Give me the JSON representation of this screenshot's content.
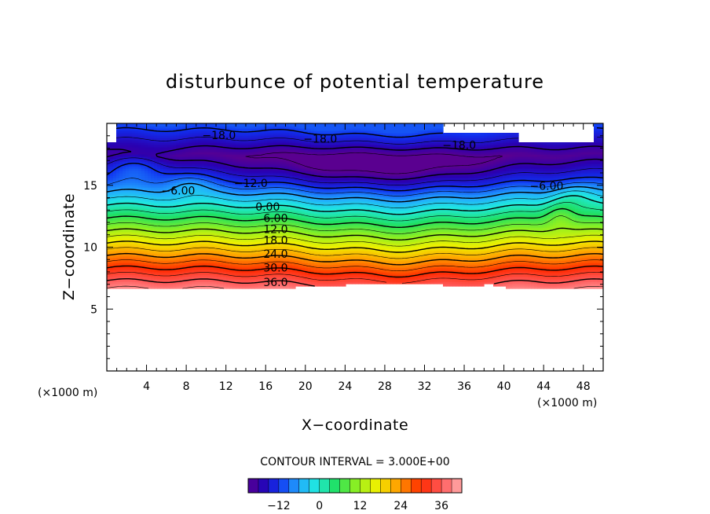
{
  "chart_data": {
    "type": "heatmap",
    "title": "disturbunce of potential temperature",
    "xlabel": "X−coordinate",
    "ylabel": "Z−coordinate",
    "x_unit_left": "(×1000 m)",
    "x_unit_right": "(×1000 m)",
    "xlim": [
      0,
      50
    ],
    "ylim": [
      0,
      20
    ],
    "x_ticks": [
      4,
      8,
      12,
      16,
      20,
      24,
      28,
      32,
      36,
      40,
      44,
      48
    ],
    "x_tick_labels": [
      "4",
      "8",
      "12",
      "16",
      "20",
      "24",
      "28",
      "32",
      "36",
      "40",
      "44",
      "48"
    ],
    "y_ticks": [
      5,
      10,
      15
    ],
    "y_tick_labels": [
      "5",
      "10",
      "15"
    ],
    "contour_interval_text": "CONTOUR INTERVAL = 3.000E+00",
    "contour_interval": 3,
    "level_range": [
      -21,
      42
    ],
    "undefined_regions": [
      "z below about 6.5 (×1000 m)",
      "top-left corner near x=0",
      "top-right near x=42-49"
    ],
    "contour_labels": [
      {
        "text": "−18.0",
        "x": 11.3,
        "z": 19.0
      },
      {
        "text": "−18.0",
        "x": 21.5,
        "z": 18.7
      },
      {
        "text": "−18.0",
        "x": 35.5,
        "z": 18.2
      },
      {
        "text": "−12.0",
        "x": 14.5,
        "z": 15.1
      },
      {
        "text": "−6.00",
        "x": 7.2,
        "z": 14.5
      },
      {
        "text": "−6.00",
        "x": 44.3,
        "z": 14.9
      },
      {
        "text": "0.00",
        "x": 16.2,
        "z": 13.2
      },
      {
        "text": "6.00",
        "x": 17.0,
        "z": 12.3
      },
      {
        "text": "12.0",
        "x": 17.0,
        "z": 11.4
      },
      {
        "text": "18.0",
        "x": 17.0,
        "z": 10.5
      },
      {
        "text": "24.0",
        "x": 17.0,
        "z": 9.4
      },
      {
        "text": "30.0",
        "x": 17.0,
        "z": 8.3
      },
      {
        "text": "36.0",
        "x": 17.0,
        "z": 7.1
      }
    ],
    "colorbar": {
      "tick_values": [
        -12,
        0,
        12,
        24,
        36
      ],
      "tick_labels": [
        "−12",
        "0",
        "12",
        "24",
        "36"
      ],
      "range": [
        -21,
        42
      ],
      "colormap": "rainbow: purple (low) → blue → cyan → green → yellow → orange → red → pink (high)"
    },
    "grid": false,
    "legend": "colorbar bottom-center"
  }
}
